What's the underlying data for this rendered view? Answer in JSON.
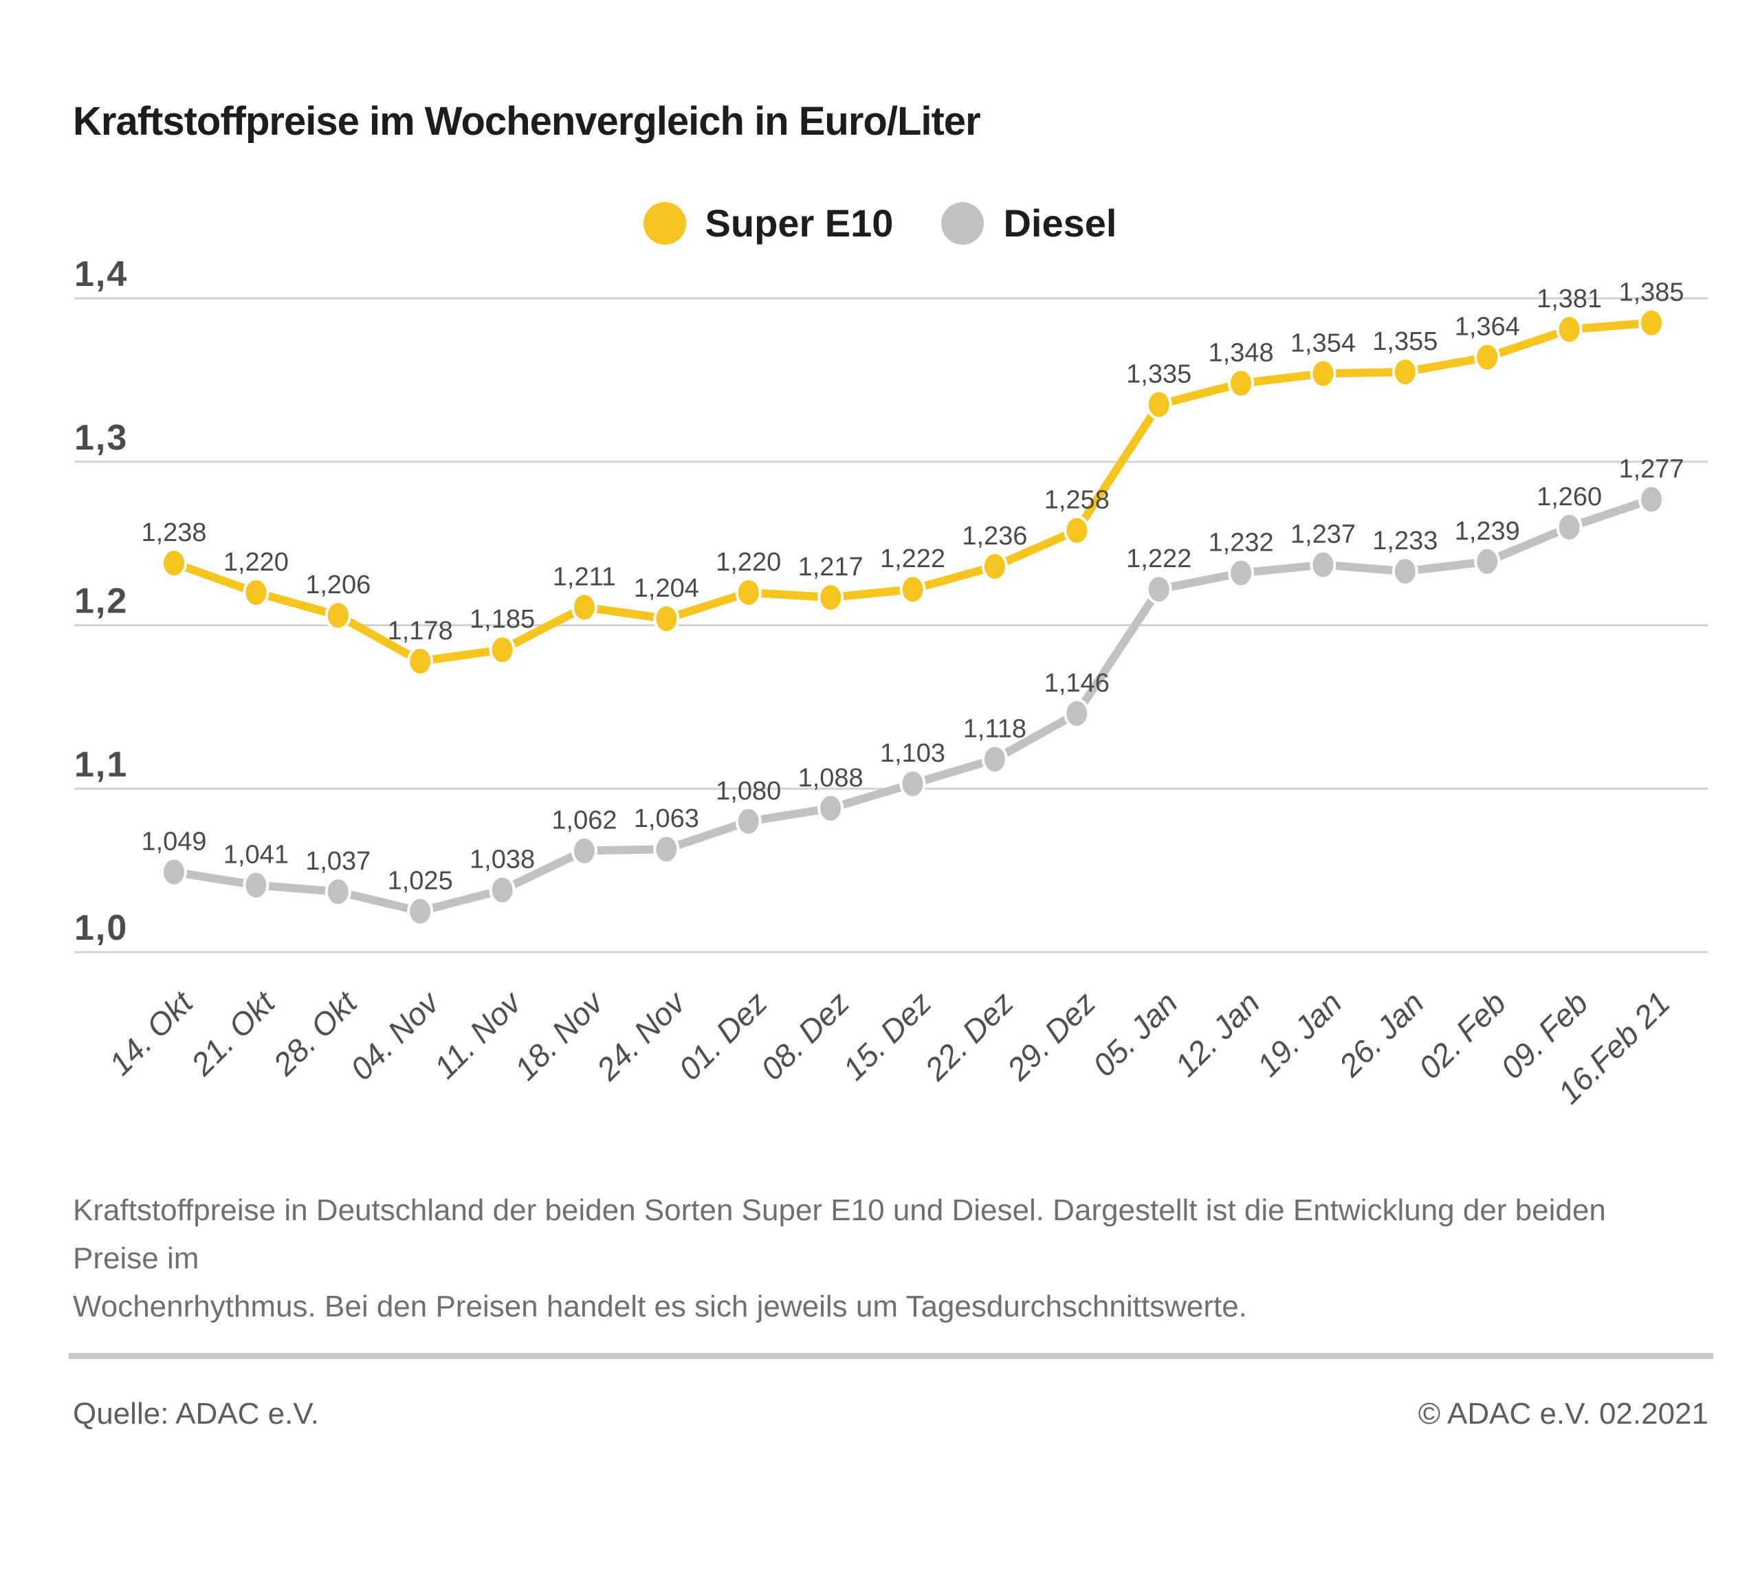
{
  "page": {
    "caption_line1": "Kraftstoffpreise in Deutschland der beiden Sorten Super E10 und Diesel. Dargestellt ist die Entwicklung der beiden Preise im",
    "caption_line2": "Wochenrhythmus. Bei den Preisen handelt es sich jeweils um Tagesdurchschnittswerte.",
    "source": "Quelle: ADAC e.V.",
    "copyright": "© ADAC e.V. 02.2021"
  },
  "chart_data": {
    "type": "line",
    "title": "Kraftstoffpreise im Wochenvergleich in Euro/Liter",
    "xlabel": "",
    "ylabel": "",
    "categories": [
      "14. Okt",
      "21. Okt",
      "28. Okt",
      "04. Nov",
      "11. Nov",
      "18. Nov",
      "24. Nov",
      "01. Dez",
      "08. Dez",
      "15. Dez",
      "22. Dez",
      "29. Dez",
      "05. Jan",
      "12. Jan",
      "19. Jan",
      "26. Jan",
      "02. Feb",
      "09. Feb",
      "16.Feb 21"
    ],
    "series": [
      {
        "name": "Super E10",
        "color": "#f6c41e",
        "values": [
          1.238,
          1.22,
          1.206,
          1.178,
          1.185,
          1.211,
          1.204,
          1.22,
          1.217,
          1.222,
          1.236,
          1.258,
          1.335,
          1.348,
          1.354,
          1.355,
          1.364,
          1.381,
          1.385
        ]
      },
      {
        "name": "Diesel",
        "color": "#c1c1c1",
        "values": [
          1.049,
          1.041,
          1.037,
          1.025,
          1.038,
          1.062,
          1.063,
          1.08,
          1.088,
          1.103,
          1.118,
          1.146,
          1.222,
          1.232,
          1.237,
          1.233,
          1.239,
          1.26,
          1.277
        ]
      }
    ],
    "ylim": [
      1.0,
      1.4
    ],
    "yticks": [
      1.0,
      1.1,
      1.2,
      1.3,
      1.4
    ],
    "decimal_separator": ",",
    "grid": true,
    "data_labels": true,
    "legend_position": "top-center"
  }
}
